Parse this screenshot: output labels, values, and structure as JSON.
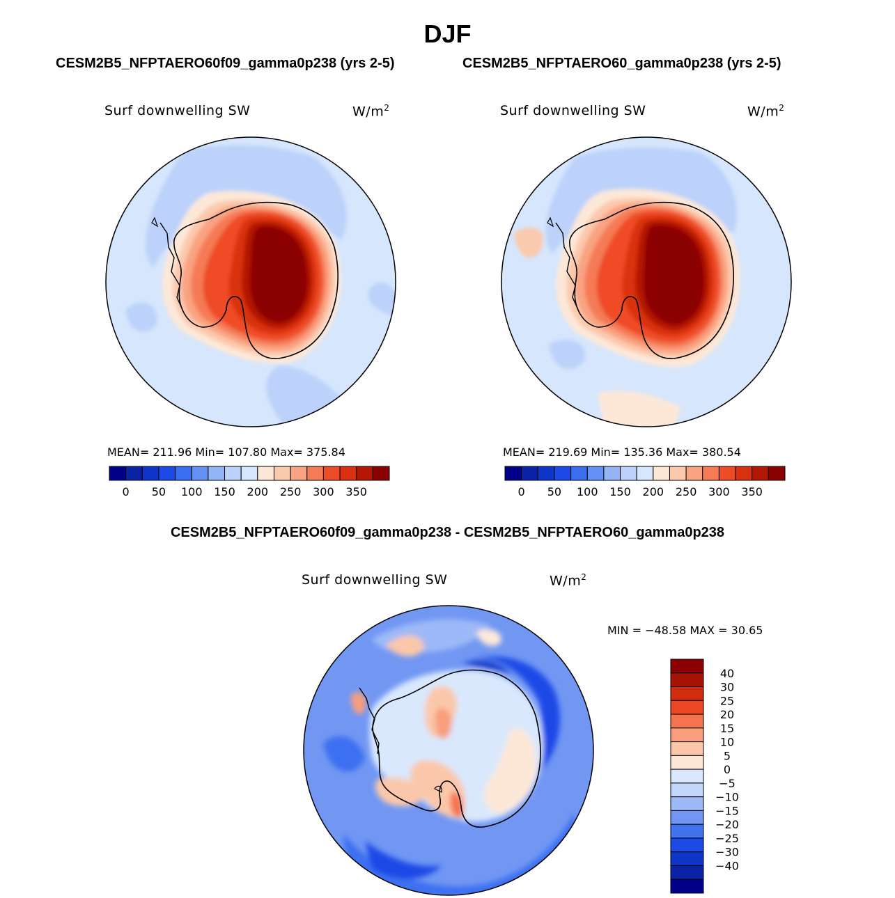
{
  "header": {
    "season": "DJF",
    "left_case": "CESM2B5_NFPTAERO60f09_gamma0p238 (yrs 2-5)",
    "right_case": "CESM2B5_NFPTAERO60_gamma0p238 (yrs 2-5)",
    "diff_title": "CESM2B5_NFPTAERO60f09_gamma0p238 - CESM2B5_NFPTAERO60_gamma0p238"
  },
  "panels": {
    "left": {
      "variable": "Surf downwelling SW",
      "units_base": "W/m",
      "units_exp": "2",
      "stats": "MEAN= 211.96   Min= 107.80   Max= 375.84"
    },
    "right": {
      "variable": "Surf downwelling SW",
      "units_base": "W/m",
      "units_exp": "2",
      "stats": "MEAN= 219.69   Min= 135.36   Max= 380.54"
    },
    "diff": {
      "variable": "Surf downwelling SW",
      "units_base": "W/m",
      "units_exp": "2",
      "stats": "MIN = −48.58 MAX =   30.65"
    }
  },
  "colors": {
    "abs_palette": [
      "#00008b",
      "#0a22a5",
      "#0d35c8",
      "#1d4ae6",
      "#3c6ff0",
      "#6590f4",
      "#93b4f7",
      "#bcd2fa",
      "#d6e6fc",
      "#fde8d8",
      "#fbc9ad",
      "#f9a382",
      "#f57a56",
      "#ee4c27",
      "#d9300f",
      "#b21805",
      "#8b0000"
    ],
    "diff_palette": [
      "#00008b",
      "#0a22a5",
      "#0d35c8",
      "#1d4ae6",
      "#4273ee",
      "#7197f3",
      "#9db9f7",
      "#c2d7fb",
      "#d9e8fd",
      "#fde8d8",
      "#fbc7aa",
      "#f89e7c",
      "#f4744f",
      "#ec4724",
      "#d02c0d",
      "#a81404",
      "#8b0000"
    ],
    "land_outline": "#000000"
  },
  "chart_data": [
    {
      "type": "heatmap",
      "projection": "south-polar-stereographic",
      "title": "CESM2B5_NFPTAERO60f09_gamma0p238 (yrs 2-5)",
      "variable": "Surf downwelling SW",
      "units": "W/m2",
      "mean": 211.96,
      "min": 107.8,
      "max": 375.84,
      "colorbar": {
        "orientation": "horizontal",
        "levels": [
          0,
          25,
          50,
          75,
          100,
          125,
          150,
          175,
          200,
          225,
          250,
          275,
          300,
          325,
          350
        ],
        "tick_labels": [
          "0",
          "50",
          "100",
          "150",
          "200",
          "250",
          "300",
          "350"
        ]
      }
    },
    {
      "type": "heatmap",
      "projection": "south-polar-stereographic",
      "title": "CESM2B5_NFPTAERO60_gamma0p238 (yrs 2-5)",
      "variable": "Surf downwelling SW",
      "units": "W/m2",
      "mean": 219.69,
      "min": 135.36,
      "max": 380.54,
      "colorbar": {
        "orientation": "horizontal",
        "levels": [
          0,
          25,
          50,
          75,
          100,
          125,
          150,
          175,
          200,
          225,
          250,
          275,
          300,
          325,
          350
        ],
        "tick_labels": [
          "0",
          "50",
          "100",
          "150",
          "200",
          "250",
          "300",
          "350"
        ]
      }
    },
    {
      "type": "heatmap",
      "projection": "south-polar-stereographic",
      "title": "CESM2B5_NFPTAERO60f09_gamma0p238 - CESM2B5_NFPTAERO60_gamma0p238",
      "variable": "Surf downwelling SW",
      "units": "W/m2",
      "min": -48.58,
      "max": 30.65,
      "colorbar": {
        "orientation": "vertical",
        "levels": [
          40,
          30,
          25,
          20,
          15,
          10,
          5,
          0,
          -5,
          -10,
          -15,
          -20,
          -25,
          -30,
          -40
        ],
        "tick_labels": [
          "40",
          "30",
          "25",
          "20",
          "15",
          "10",
          "5",
          "0",
          "−5",
          "−10",
          "−15",
          "−20",
          "−25",
          "−30",
          "−40"
        ]
      }
    }
  ]
}
